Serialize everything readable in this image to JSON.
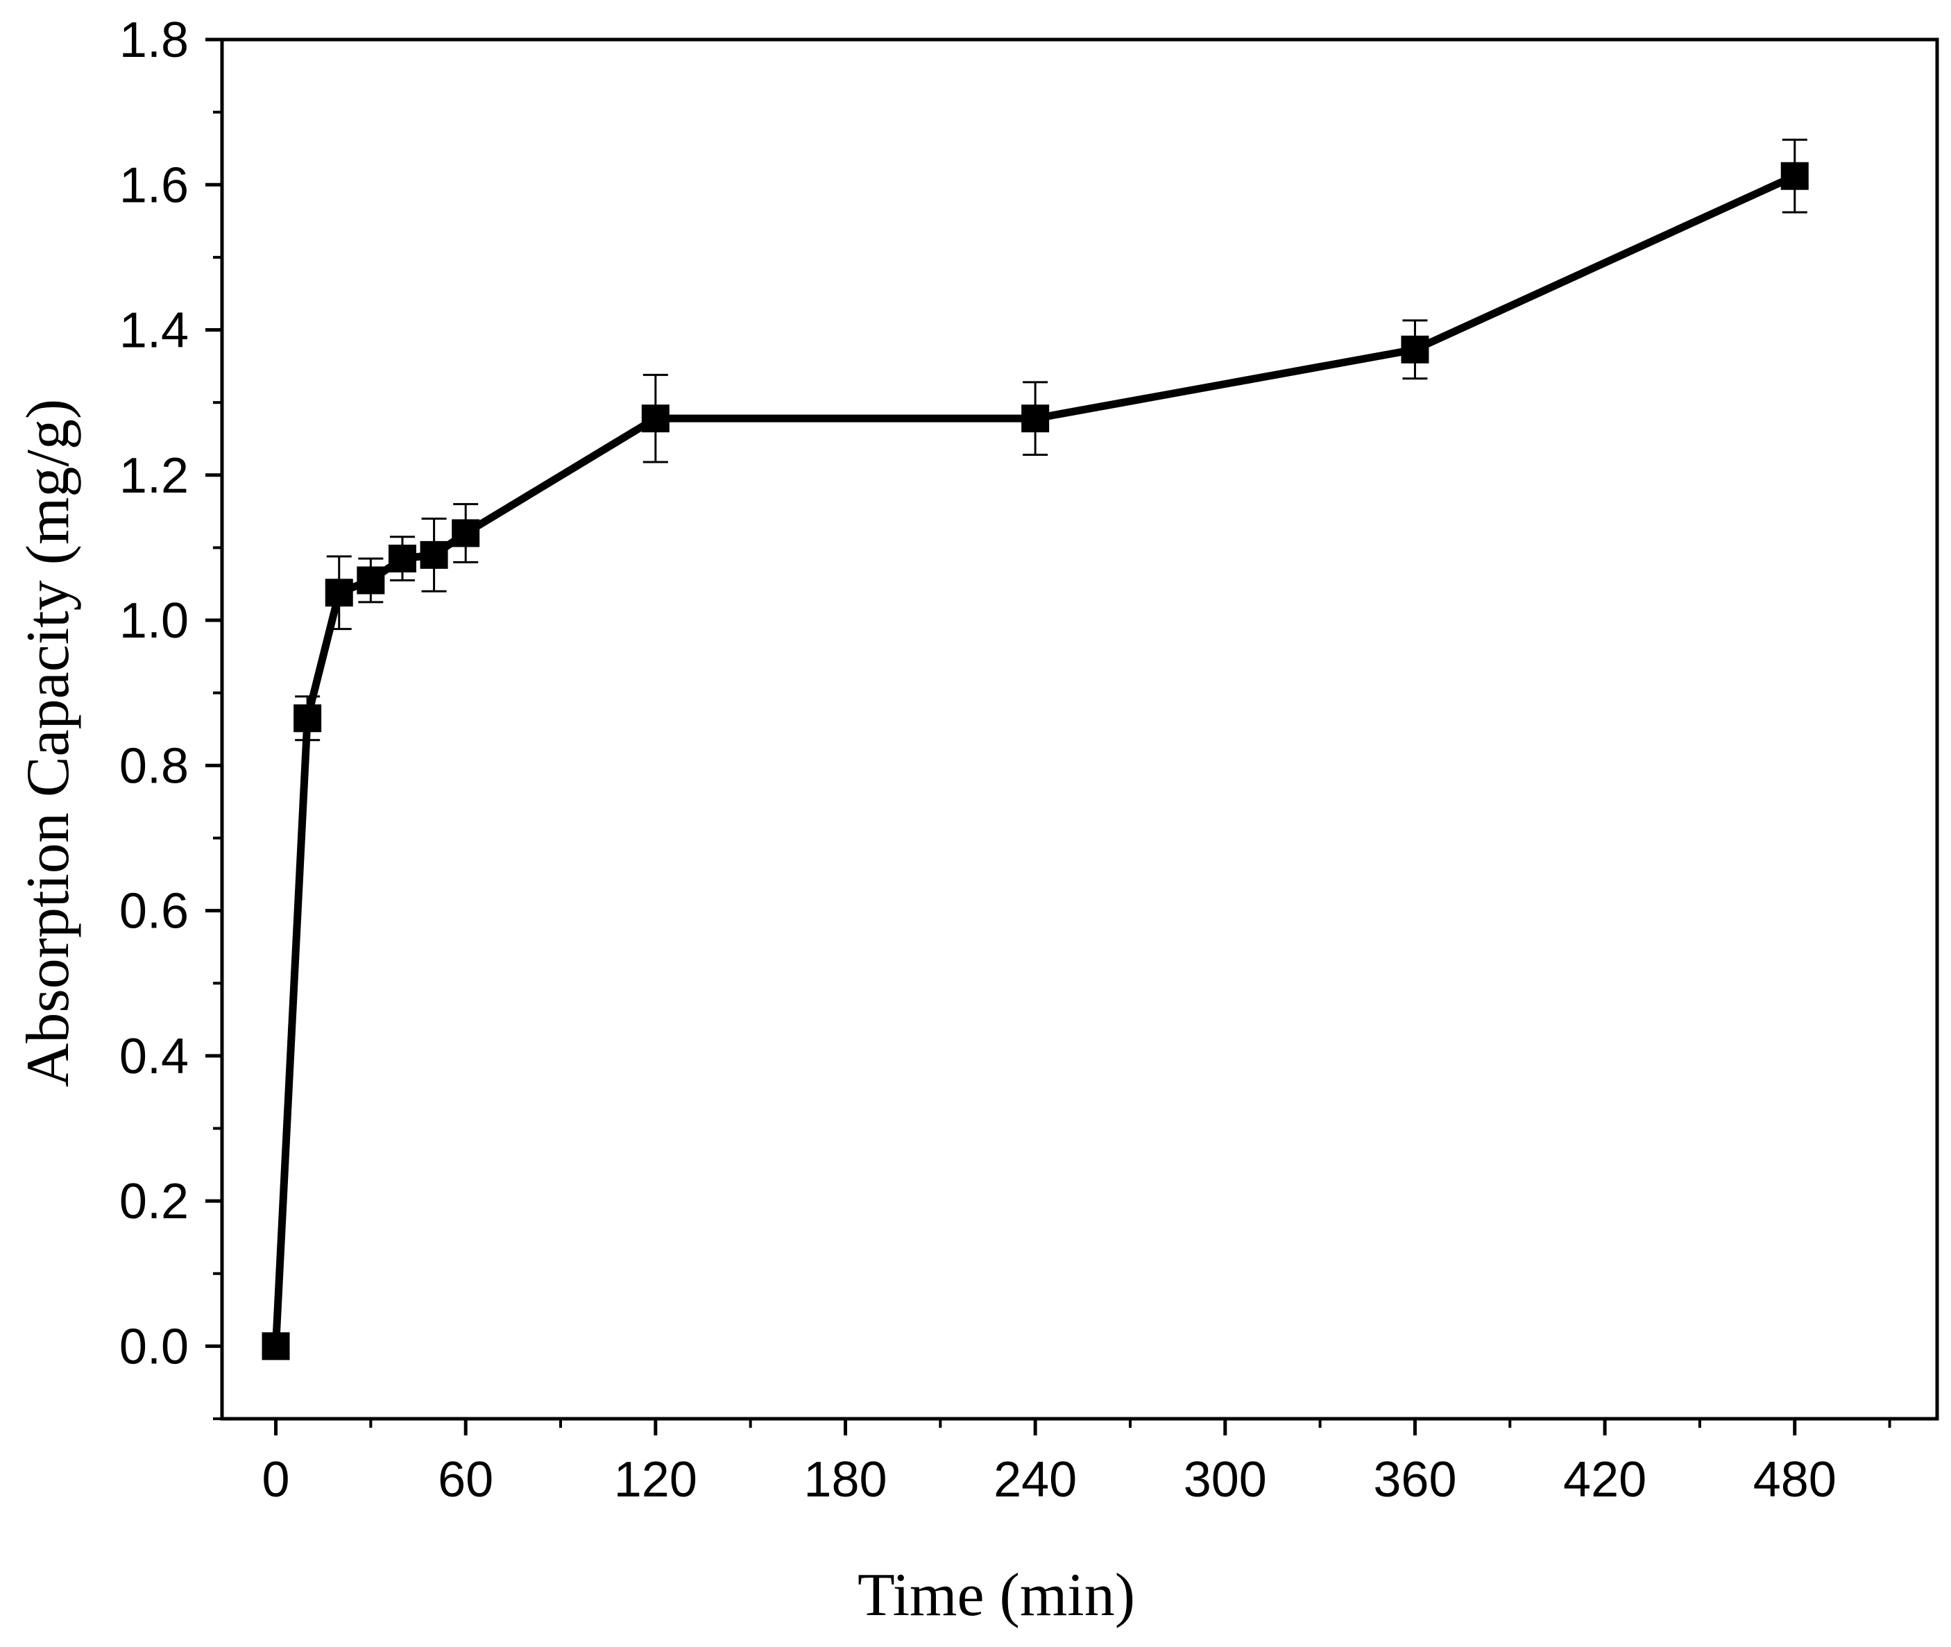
{
  "chart_data": {
    "type": "line",
    "title": "",
    "xlabel": "Time (min)",
    "ylabel": "Absorption Capacity (mg/g)",
    "xlim": [
      -17,
      525
    ],
    "ylim": [
      -0.1,
      1.8
    ],
    "x_ticks": [
      0,
      60,
      120,
      180,
      240,
      300,
      360,
      420,
      480
    ],
    "x_tick_labels": [
      "0",
      "60",
      "120",
      "180",
      "240",
      "300",
      "360",
      "420",
      "480"
    ],
    "y_ticks": [
      0.0,
      0.2,
      0.4,
      0.6,
      0.8,
      1.0,
      1.2,
      1.4,
      1.6,
      1.8
    ],
    "y_tick_labels": [
      "0.0",
      "0.2",
      "0.4",
      "0.6",
      "0.8",
      "1.0",
      "1.2",
      "1.4",
      "1.6",
      "1.8"
    ],
    "grid": false,
    "legend": "none",
    "marker": "square",
    "line_color": "#000000",
    "series": [
      {
        "name": "Absorption Capacity",
        "x": [
          0,
          10,
          20,
          30,
          40,
          50,
          60,
          120,
          240,
          360,
          480
        ],
        "y": [
          0.0,
          0.865,
          1.038,
          1.055,
          1.085,
          1.09,
          1.12,
          1.278,
          1.278,
          1.373,
          1.612
        ],
        "error": [
          0.0,
          0.03,
          0.05,
          0.03,
          0.03,
          0.05,
          0.04,
          0.06,
          0.05,
          0.04,
          0.05
        ]
      }
    ]
  }
}
